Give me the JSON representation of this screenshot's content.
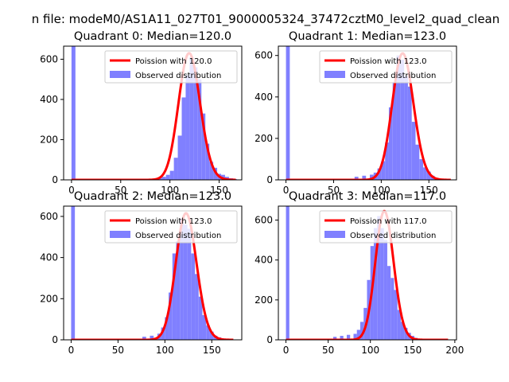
{
  "figure": {
    "suptitle": "n file: modeM0/AS1A11_027T01_9000005324_37472cztM0_level2_quad_clean"
  },
  "colors": {
    "histogram": "#8080ff",
    "poisson": "#ff0000",
    "axes": "#000000",
    "background": "#ffffff"
  },
  "chart_data": [
    {
      "type": "bar",
      "title": "Quadrant 0: Median=120.0",
      "xlim": [
        -8,
        173
      ],
      "ylim": [
        0,
        665
      ],
      "xticks": [
        0,
        50,
        100,
        150
      ],
      "yticks": [
        0,
        200,
        400,
        600
      ],
      "bin_width": 4,
      "bins": [
        {
          "x": 0,
          "y": 665
        },
        {
          "x": 88,
          "y": 10
        },
        {
          "x": 92,
          "y": 15
        },
        {
          "x": 96,
          "y": 25
        },
        {
          "x": 100,
          "y": 45
        },
        {
          "x": 104,
          "y": 110
        },
        {
          "x": 108,
          "y": 220
        },
        {
          "x": 112,
          "y": 410
        },
        {
          "x": 116,
          "y": 520
        },
        {
          "x": 120,
          "y": 610
        },
        {
          "x": 124,
          "y": 560
        },
        {
          "x": 128,
          "y": 500
        },
        {
          "x": 132,
          "y": 330
        },
        {
          "x": 136,
          "y": 180
        },
        {
          "x": 140,
          "y": 90
        },
        {
          "x": 144,
          "y": 60
        },
        {
          "x": 148,
          "y": 30
        },
        {
          "x": 152,
          "y": 25
        },
        {
          "x": 156,
          "y": 15
        },
        {
          "x": 160,
          "y": 8
        },
        {
          "x": 164,
          "y": 4
        }
      ],
      "poisson_mean": 120.0,
      "poisson_peak": 630,
      "poisson_range": [
        0,
        167
      ],
      "legend": {
        "placement": "upper right",
        "line_label": "Poission with 120.0",
        "bar_label": "Observed distribution"
      }
    },
    {
      "type": "bar",
      "title": "Quadrant 1: Median=123.0",
      "xlim": [
        -8,
        179
      ],
      "ylim": [
        0,
        645
      ],
      "xticks": [
        0,
        50,
        100,
        150
      ],
      "yticks": [
        0,
        200,
        400,
        600
      ],
      "bin_width": 4,
      "bins": [
        {
          "x": 0,
          "y": 645
        },
        {
          "x": 72,
          "y": 15
        },
        {
          "x": 80,
          "y": 20
        },
        {
          "x": 88,
          "y": 25
        },
        {
          "x": 92,
          "y": 35
        },
        {
          "x": 96,
          "y": 55
        },
        {
          "x": 100,
          "y": 90
        },
        {
          "x": 104,
          "y": 180
        },
        {
          "x": 108,
          "y": 350
        },
        {
          "x": 112,
          "y": 470
        },
        {
          "x": 116,
          "y": 600
        },
        {
          "x": 120,
          "y": 580
        },
        {
          "x": 124,
          "y": 500
        },
        {
          "x": 128,
          "y": 450
        },
        {
          "x": 132,
          "y": 280
        },
        {
          "x": 136,
          "y": 170
        },
        {
          "x": 140,
          "y": 100
        },
        {
          "x": 144,
          "y": 60
        },
        {
          "x": 148,
          "y": 40
        },
        {
          "x": 152,
          "y": 20
        },
        {
          "x": 156,
          "y": 10
        },
        {
          "x": 160,
          "y": 5
        }
      ],
      "poisson_mean": 123.0,
      "poisson_peak": 610,
      "poisson_range": [
        0,
        173
      ],
      "legend": {
        "placement": "upper right",
        "line_label": "Poission with 123.0",
        "bar_label": "Observed distribution"
      }
    },
    {
      "type": "bar",
      "title": "Quadrant 2: Median=123.0",
      "xlim": [
        -8,
        182
      ],
      "ylim": [
        0,
        650
      ],
      "xticks": [
        0,
        50,
        100,
        150
      ],
      "yticks": [
        0,
        200,
        400,
        600
      ],
      "bin_width": 4,
      "bins": [
        {
          "x": 0,
          "y": 650
        },
        {
          "x": 76,
          "y": 15
        },
        {
          "x": 84,
          "y": 20
        },
        {
          "x": 92,
          "y": 30
        },
        {
          "x": 96,
          "y": 60
        },
        {
          "x": 100,
          "y": 110
        },
        {
          "x": 104,
          "y": 230
        },
        {
          "x": 108,
          "y": 420
        },
        {
          "x": 112,
          "y": 480
        },
        {
          "x": 116,
          "y": 590
        },
        {
          "x": 120,
          "y": 560
        },
        {
          "x": 124,
          "y": 540
        },
        {
          "x": 128,
          "y": 420
        },
        {
          "x": 132,
          "y": 320
        },
        {
          "x": 136,
          "y": 210
        },
        {
          "x": 140,
          "y": 120
        },
        {
          "x": 144,
          "y": 70
        },
        {
          "x": 148,
          "y": 40
        },
        {
          "x": 152,
          "y": 20
        },
        {
          "x": 156,
          "y": 12
        },
        {
          "x": 160,
          "y": 6
        }
      ],
      "poisson_mean": 123.0,
      "poisson_peak": 615,
      "poisson_range": [
        0,
        173
      ],
      "legend": {
        "placement": "upper right",
        "line_label": "Poission with 123.0",
        "bar_label": "Observed distribution"
      }
    },
    {
      "type": "bar",
      "title": "Quadrant 3: Median=117.0",
      "xlim": [
        -9,
        202
      ],
      "ylim": [
        0,
        670
      ],
      "xticks": [
        0,
        50,
        100,
        150,
        200
      ],
      "yticks": [
        0,
        200,
        400,
        600
      ],
      "bin_width": 4,
      "bins": [
        {
          "x": 0,
          "y": 670
        },
        {
          "x": 56,
          "y": 15
        },
        {
          "x": 64,
          "y": 20
        },
        {
          "x": 72,
          "y": 25
        },
        {
          "x": 80,
          "y": 30
        },
        {
          "x": 84,
          "y": 50
        },
        {
          "x": 88,
          "y": 90
        },
        {
          "x": 92,
          "y": 160
        },
        {
          "x": 96,
          "y": 300
        },
        {
          "x": 100,
          "y": 470
        },
        {
          "x": 104,
          "y": 560
        },
        {
          "x": 108,
          "y": 620
        },
        {
          "x": 112,
          "y": 560
        },
        {
          "x": 116,
          "y": 500
        },
        {
          "x": 120,
          "y": 370
        },
        {
          "x": 124,
          "y": 310
        },
        {
          "x": 128,
          "y": 250
        },
        {
          "x": 132,
          "y": 150
        },
        {
          "x": 136,
          "y": 90
        },
        {
          "x": 140,
          "y": 60
        },
        {
          "x": 144,
          "y": 35
        },
        {
          "x": 148,
          "y": 20
        },
        {
          "x": 152,
          "y": 10
        },
        {
          "x": 156,
          "y": 5
        }
      ],
      "poisson_mean": 117.0,
      "poisson_peak": 645,
      "poisson_range": [
        0,
        192
      ],
      "legend": {
        "placement": "upper right",
        "line_label": "Poission with 117.0",
        "bar_label": "Observed distribution"
      }
    }
  ]
}
